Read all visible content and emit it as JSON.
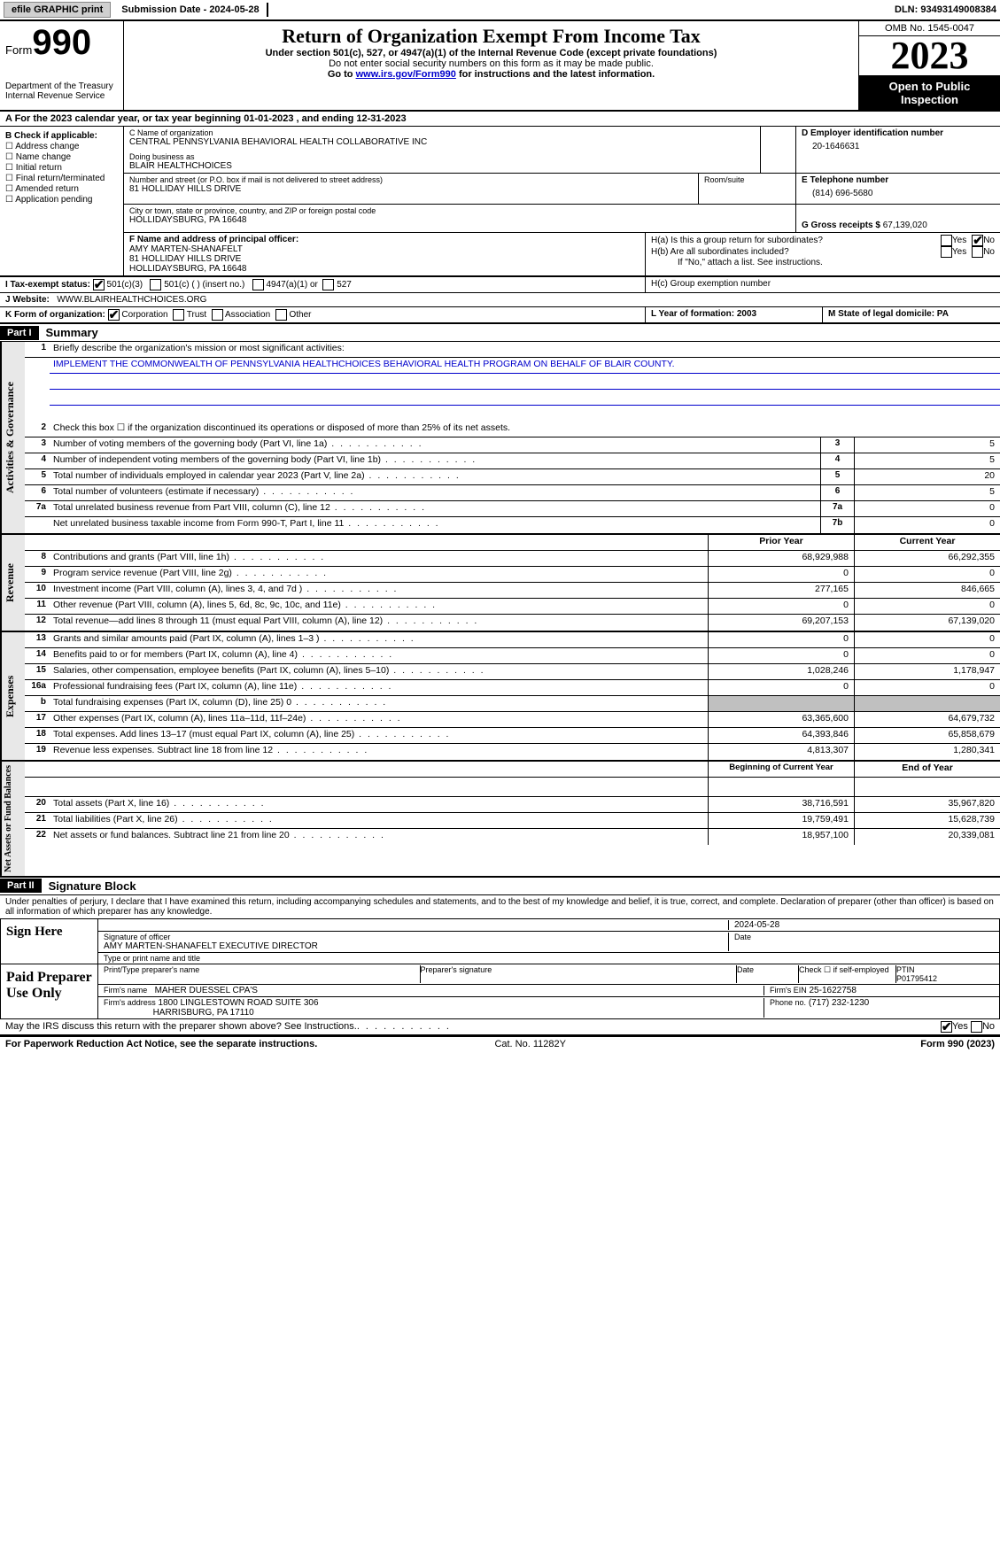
{
  "topBar": {
    "efile": "efile GRAPHIC print",
    "submission": "Submission Date - 2024-05-28",
    "dln": "DLN: 93493149008384"
  },
  "header": {
    "formWord": "Form",
    "formNum": "990",
    "dept": "Department of the Treasury",
    "irs": "Internal Revenue Service",
    "title": "Return of Organization Exempt From Income Tax",
    "sub1": "Under section 501(c), 527, or 4947(a)(1) of the Internal Revenue Code (except private foundations)",
    "sub2": "Do not enter social security numbers on this form as it may be made public.",
    "sub3a": "Go to ",
    "sub3link": "www.irs.gov/Form990",
    "sub3b": " for instructions and the latest information.",
    "omb": "OMB No. 1545-0047",
    "year": "2023",
    "open": "Open to Public Inspection"
  },
  "rowA": "A For the 2023 calendar year, or tax year beginning 01-01-2023   , and ending 12-31-2023",
  "sectionB": {
    "title": "B Check if applicable:",
    "items": [
      "Address change",
      "Name change",
      "Initial return",
      "Final return/terminated",
      "Amended return",
      "Application pending"
    ]
  },
  "sectionC": {
    "nameLabel": "C Name of organization",
    "name": "CENTRAL PENNSYLVANIA BEHAVIORAL HEALTH COLLABORATIVE INC",
    "dbaLabel": "Doing business as",
    "dba": "BLAIR HEALTHCHOICES",
    "addrLabel": "Number and street (or P.O. box if mail is not delivered to street address)",
    "addr": "81 HOLLIDAY HILLS DRIVE",
    "roomLabel": "Room/suite",
    "cityLabel": "City or town, state or province, country, and ZIP or foreign postal code",
    "city": "HOLLIDAYSBURG, PA  16648"
  },
  "sectionD": {
    "label": "D Employer identification number",
    "val": "20-1646631"
  },
  "sectionE": {
    "label": "E Telephone number",
    "val": "(814) 696-5680"
  },
  "sectionG": {
    "label": "G Gross receipts $",
    "val": "67,139,020"
  },
  "sectionF": {
    "label": "F  Name and address of principal officer:",
    "name": "AMY MARTEN-SHANAFELT",
    "addr1": "81 HOLLIDAY HILLS DRIVE",
    "addr2": "HOLLIDAYSBURG, PA  16648"
  },
  "sectionH": {
    "a": "H(a)  Is this a group return for subordinates?",
    "b": "H(b)  Are all subordinates included?",
    "bnote": "If \"No,\" attach a list. See instructions.",
    "c": "H(c)  Group exemption number",
    "yes": "Yes",
    "no": "No"
  },
  "sectionI": {
    "label": "I   Tax-exempt status:",
    "opts": [
      "501(c)(3)",
      "501(c) (  ) (insert no.)",
      "4947(a)(1) or",
      "527"
    ]
  },
  "sectionJ": {
    "label": "J   Website:",
    "val": "WWW.BLAIRHEALTHCHOICES.ORG"
  },
  "sectionK": {
    "label": "K Form of organization:",
    "opts": [
      "Corporation",
      "Trust",
      "Association",
      "Other"
    ]
  },
  "sectionL": "L Year of formation: 2003",
  "sectionM": "M State of legal domicile: PA",
  "part1": {
    "hdr": "Part I",
    "title": "Summary",
    "q1": "Briefly describe the organization's mission or most significant activities:",
    "q1val": "IMPLEMENT THE COMMONWEALTH OF PENNSYLVANIA HEALTHCHOICES BEHAVIORAL HEALTH PROGRAM ON BEHALF OF BLAIR COUNTY.",
    "q2": "Check this box ☐ if the organization discontinued its operations or disposed of more than 25% of its net assets.",
    "rows_gov": [
      {
        "n": "3",
        "d": "Number of voting members of the governing body (Part VI, line 1a)",
        "box": "3",
        "v": "5"
      },
      {
        "n": "4",
        "d": "Number of independent voting members of the governing body (Part VI, line 1b)",
        "box": "4",
        "v": "5"
      },
      {
        "n": "5",
        "d": "Total number of individuals employed in calendar year 2023 (Part V, line 2a)",
        "box": "5",
        "v": "20"
      },
      {
        "n": "6",
        "d": "Total number of volunteers (estimate if necessary)",
        "box": "6",
        "v": "5"
      },
      {
        "n": "7a",
        "d": "Total unrelated business revenue from Part VIII, column (C), line 12",
        "box": "7a",
        "v": "0"
      },
      {
        "n": "",
        "d": "Net unrelated business taxable income from Form 990-T, Part I, line 11",
        "box": "7b",
        "v": "0"
      }
    ],
    "hdr_prior": "Prior Year",
    "hdr_curr": "Current Year",
    "rows_rev": [
      {
        "n": "8",
        "d": "Contributions and grants (Part VIII, line 1h)",
        "p": "68,929,988",
        "c": "66,292,355"
      },
      {
        "n": "9",
        "d": "Program service revenue (Part VIII, line 2g)",
        "p": "0",
        "c": "0"
      },
      {
        "n": "10",
        "d": "Investment income (Part VIII, column (A), lines 3, 4, and 7d )",
        "p": "277,165",
        "c": "846,665"
      },
      {
        "n": "11",
        "d": "Other revenue (Part VIII, column (A), lines 5, 6d, 8c, 9c, 10c, and 11e)",
        "p": "0",
        "c": "0"
      },
      {
        "n": "12",
        "d": "Total revenue—add lines 8 through 11 (must equal Part VIII, column (A), line 12)",
        "p": "69,207,153",
        "c": "67,139,020"
      }
    ],
    "rows_exp": [
      {
        "n": "13",
        "d": "Grants and similar amounts paid (Part IX, column (A), lines 1–3 )",
        "p": "0",
        "c": "0"
      },
      {
        "n": "14",
        "d": "Benefits paid to or for members (Part IX, column (A), line 4)",
        "p": "0",
        "c": "0"
      },
      {
        "n": "15",
        "d": "Salaries, other compensation, employee benefits (Part IX, column (A), lines 5–10)",
        "p": "1,028,246",
        "c": "1,178,947"
      },
      {
        "n": "16a",
        "d": "Professional fundraising fees (Part IX, column (A), line 11e)",
        "p": "0",
        "c": "0"
      },
      {
        "n": "b",
        "d": "Total fundraising expenses (Part IX, column (D), line 25) 0",
        "p": "grey",
        "c": "grey"
      },
      {
        "n": "17",
        "d": "Other expenses (Part IX, column (A), lines 11a–11d, 11f–24e)",
        "p": "63,365,600",
        "c": "64,679,732"
      },
      {
        "n": "18",
        "d": "Total expenses. Add lines 13–17 (must equal Part IX, column (A), line 25)",
        "p": "64,393,846",
        "c": "65,858,679"
      },
      {
        "n": "19",
        "d": "Revenue less expenses. Subtract line 18 from line 12",
        "p": "4,813,307",
        "c": "1,280,341"
      }
    ],
    "hdr_beg": "Beginning of Current Year",
    "hdr_end": "End of Year",
    "rows_net": [
      {
        "n": "20",
        "d": "Total assets (Part X, line 16)",
        "p": "38,716,591",
        "c": "35,967,820"
      },
      {
        "n": "21",
        "d": "Total liabilities (Part X, line 26)",
        "p": "19,759,491",
        "c": "15,628,739"
      },
      {
        "n": "22",
        "d": "Net assets or fund balances. Subtract line 21 from line 20",
        "p": "18,957,100",
        "c": "20,339,081"
      }
    ],
    "side_gov": "Activities & Governance",
    "side_rev": "Revenue",
    "side_exp": "Expenses",
    "side_net": "Net Assets or Fund Balances"
  },
  "part2": {
    "hdr": "Part II",
    "title": "Signature Block",
    "decl": "Under penalties of perjury, I declare that I have examined this return, including accompanying schedules and statements, and to the best of my knowledge and belief, it is true, correct, and complete. Declaration of preparer (other than officer) is based on all information of which preparer has any knowledge.",
    "signHere": "Sign Here",
    "sigOfficer": "Signature of officer",
    "sigName": "AMY MARTEN-SHANAFELT  EXECUTIVE DIRECTOR",
    "sigNameLabel": "Type or print name and title",
    "sigDate": "2024-05-28",
    "dateLabel": "Date",
    "paid": "Paid Preparer Use Only",
    "prepName": "Print/Type preparer's name",
    "prepSig": "Preparer's signature",
    "checkSelf": "Check ☐ if self-employed",
    "ptin": "PTIN",
    "ptinVal": "P01795412",
    "firmName": "Firm's name",
    "firmNameVal": "MAHER DUESSEL CPA'S",
    "firmEin": "Firm's EIN",
    "firmEinVal": "25-1622758",
    "firmAddr": "Firm's address",
    "firmAddrVal1": "1800 LINGLESTOWN ROAD SUITE 306",
    "firmAddrVal2": "HARRISBURG, PA  17110",
    "phone": "Phone no.",
    "phoneVal": "(717) 232-1230",
    "discuss": "May the IRS discuss this return with the preparer shown above? See Instructions."
  },
  "footer": {
    "left": "For Paperwork Reduction Act Notice, see the separate instructions.",
    "mid": "Cat. No. 11282Y",
    "right": "Form 990 (2023)"
  }
}
